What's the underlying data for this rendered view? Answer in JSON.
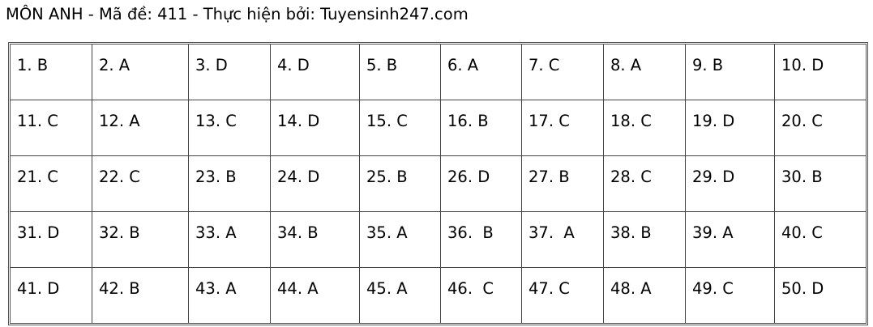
{
  "title": "MÔN ANH - Mã đề: 411 - Thực hiện bởi: Tuyensinh247.com",
  "answers": [
    [
      "1. B",
      "2. A",
      "3. D",
      "4. D",
      "5. B",
      "6. A",
      "7. C",
      "8. A",
      "9. B",
      "10. D"
    ],
    [
      "11. C",
      "12. A",
      "13. C",
      "14. D",
      "15. C",
      "16. B",
      "17. C",
      "18. C",
      "19. D",
      "20. C"
    ],
    [
      "21. C",
      "22. C",
      "23. B",
      "24. D",
      "25. B",
      "26. D",
      "27. B",
      "28. C",
      "29. D",
      "30. B"
    ],
    [
      "31. D",
      "32. B",
      "33. A",
      "34. B",
      "35. A",
      "36.  B",
      "37.  A",
      "38. B",
      "39. A",
      "40. C"
    ],
    [
      "41. D",
      "42. B",
      "43. A",
      "44. A",
      "45. A",
      "46.  C",
      "47. C",
      "48. A",
      "49. C",
      "50. D"
    ]
  ]
}
